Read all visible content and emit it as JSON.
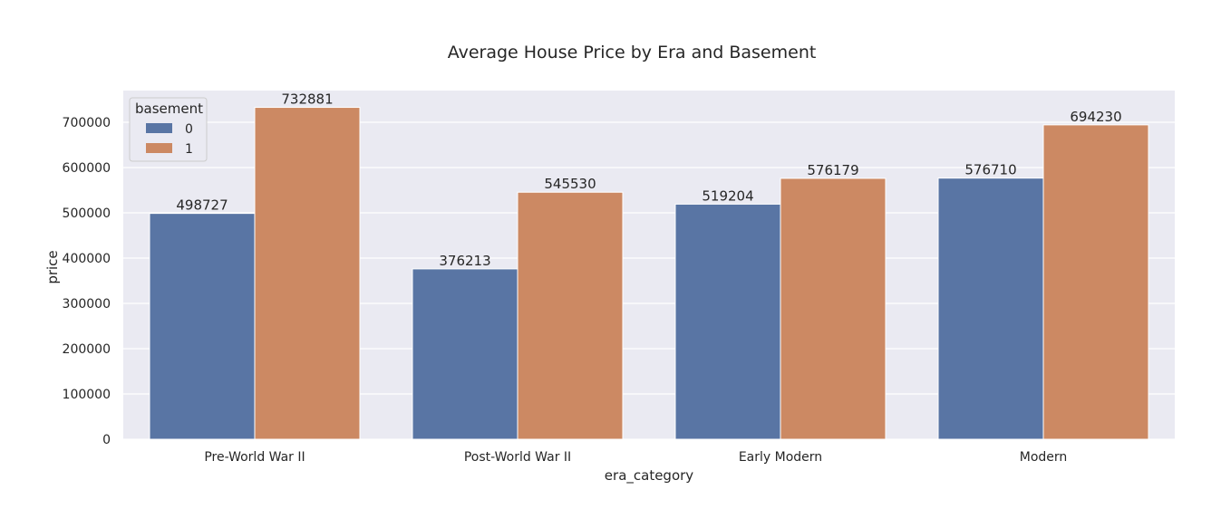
{
  "chart_data": {
    "type": "bar",
    "title": "Average House Price by Era and Basement",
    "xlabel": "era_category",
    "ylabel": "price",
    "categories": [
      "Pre-World War II",
      "Post-World War II",
      "Early Modern",
      "Modern"
    ],
    "series": [
      {
        "name": "0",
        "values": [
          498727,
          376213,
          519204,
          576710
        ],
        "color": "#5975a4"
      },
      {
        "name": "1",
        "values": [
          732881,
          545530,
          576179,
          694230
        ],
        "color": "#cc8963"
      }
    ],
    "ylim": [
      0,
      770000
    ],
    "yticks": [
      0,
      100000,
      200000,
      300000,
      400000,
      500000,
      600000,
      700000
    ],
    "grid": true,
    "legend": {
      "title": "basement",
      "position": "top-left"
    },
    "plot_background": "#eaeaf2"
  }
}
